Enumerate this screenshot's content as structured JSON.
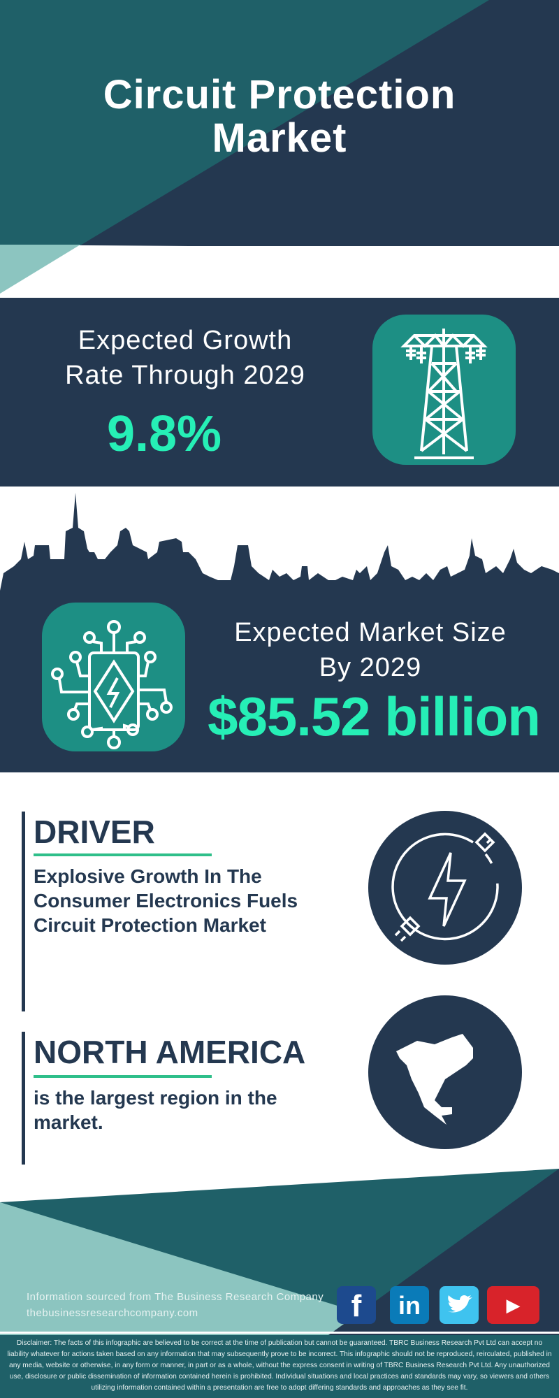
{
  "header": {
    "title_line1": "Circuit Protection",
    "title_line2": "Market"
  },
  "growth": {
    "label_line1": "Expected Growth",
    "label_line2": "Rate Through 2029",
    "value": "9.8%",
    "icon": "transmission-tower-icon"
  },
  "market_size": {
    "label_line1": "Expected Market Size",
    "label_line2": "By 2029",
    "value": "$85.52 billion",
    "icon": "circuit-chip-icon"
  },
  "driver": {
    "title": "DRIVER",
    "text": "Explosive Growth In The Consumer Electronics Fuels Circuit Protection Market",
    "icon": "plug-lightning-icon"
  },
  "region": {
    "title": "NORTH AMERICA",
    "text": "is the largest region in the market.",
    "icon": "north-america-map-icon"
  },
  "footer": {
    "source_line": "Information sourced from The Business Research Company",
    "website": "thebusinessresearchcompany.com",
    "social": [
      {
        "name": "facebook",
        "glyph": "f",
        "color": "#1d4a8e"
      },
      {
        "name": "linkedin",
        "glyph": "in",
        "color": "#0a7bb8"
      },
      {
        "name": "twitter",
        "glyph": "🐦",
        "color": "#3fc3ef"
      },
      {
        "name": "youtube",
        "glyph": "▶",
        "color": "#d8232a"
      }
    ],
    "disclaimer": "Disclaimer: The facts of this infographic are believed to be correct at the time of publication but cannot be guaranteed. TBRC Business Research Pvt Ltd can accept no liability whatever for actions taken based on any information that may subsequently prove to be incorrect. This infographic should not be reproduced, reirculated, published in any media, website or otherwise, in any form or manner, in part or as a whole, without the express consent in writing of TBRC Business Research Pvt Ltd. Any unauthorized use, disclosure or public dissemination of information contained herein is prohibited. Individual situations and local practices and standards may vary, so viewers and others utilizing information contained within a presentation are free to adopt differing standards and approaches as they see fit."
  },
  "colors": {
    "navy": "#243850",
    "teal": "#1f6068",
    "light_teal": "#8cc5c0",
    "icon_teal": "#1d8f84",
    "accent": "#26efb6"
  }
}
